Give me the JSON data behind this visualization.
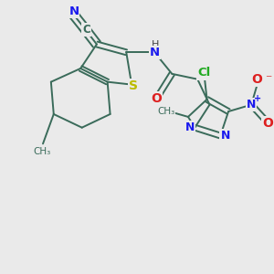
{
  "bg_color": "#eaeaea",
  "bond_color": "#3a6b5a",
  "bond_width": 1.4,
  "atom_colors": {
    "C": "#3a6b5a",
    "N": "#1a1aee",
    "S": "#bbbb00",
    "O": "#dd2020",
    "Cl": "#22aa22",
    "H": "#444444"
  },
  "figsize": [
    3.0,
    3.0
  ],
  "dpi": 100
}
